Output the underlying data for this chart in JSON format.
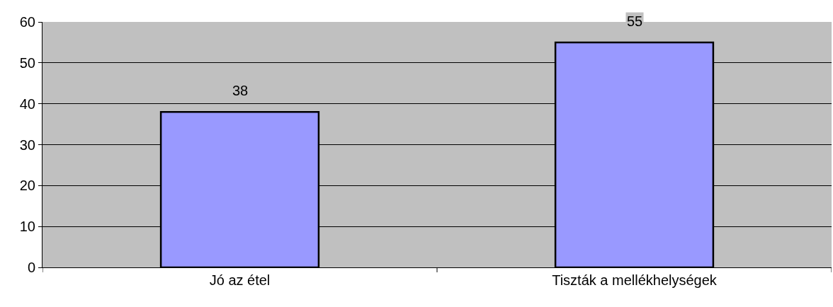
{
  "chart_data": {
    "type": "bar",
    "categories": [
      "Jó az étel",
      "Tiszták a mellékhelységek"
    ],
    "values": [
      38,
      55
    ],
    "color": "#9999ff",
    "ylim": [
      0,
      60
    ],
    "yticks": [
      0,
      10,
      20,
      30,
      40,
      50,
      60
    ],
    "grid": "y",
    "data_labels": true
  }
}
